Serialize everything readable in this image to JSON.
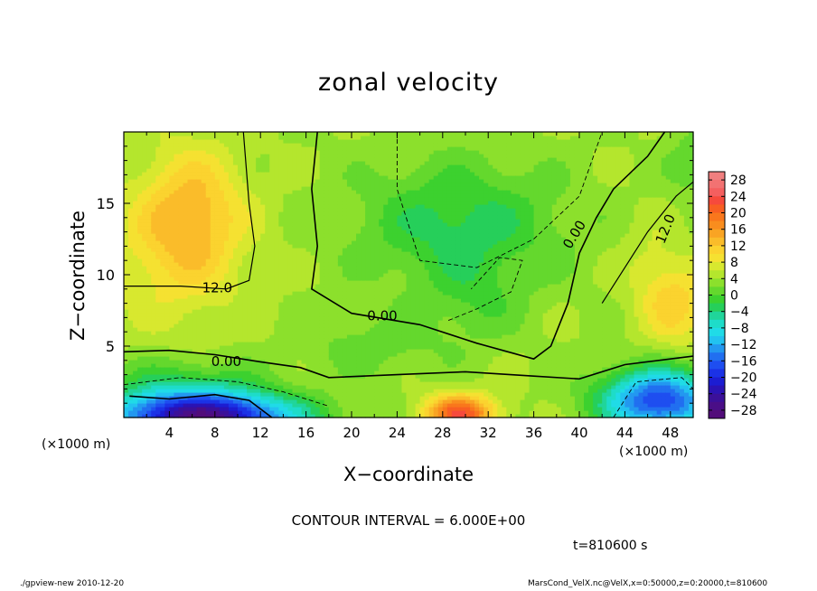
{
  "chart_data": {
    "type": "heatmap",
    "title": "zonal velocity",
    "xlabel": "X−coordinate",
    "ylabel": "Z−coordinate",
    "x_unit_label": "(×1000 m)",
    "y_unit_label": "(×1000 m)",
    "x_ticks": [
      4,
      8,
      12,
      16,
      20,
      24,
      28,
      32,
      36,
      40,
      44,
      48
    ],
    "y_ticks": [
      5,
      10,
      15
    ],
    "xlim": [
      0,
      50
    ],
    "ylim": [
      0,
      20
    ],
    "colorbar": {
      "labels": [
        "28",
        "24",
        "20",
        "16",
        "12",
        "8",
        "4",
        "0",
        "−4",
        "−8",
        "−12",
        "−16",
        "−20",
        "−24",
        "−28"
      ],
      "levels": [
        30,
        28,
        26,
        24,
        22,
        20,
        18,
        16,
        14,
        12,
        10,
        8,
        6,
        4,
        2,
        0,
        -2,
        -4,
        -6,
        -8,
        -10,
        -12,
        -14,
        -16,
        -18,
        -20,
        -22,
        -24,
        -26,
        -28,
        -30
      ],
      "colors": [
        "#f07f7f",
        "#f27272",
        "#f45f5f",
        "#f64a3c",
        "#f85f22",
        "#f9771c",
        "#f98d1e",
        "#f9a423",
        "#fabc2a",
        "#fbd32f",
        "#f5e131",
        "#d8e82f",
        "#b4e62d",
        "#8ce02c",
        "#64d82d",
        "#3cd12f",
        "#26cf5a",
        "#20d59a",
        "#1edcc9",
        "#20dbe7",
        "#22c2f0",
        "#2398f0",
        "#216ff0",
        "#1e4ef0",
        "#1b32e6",
        "#1c1dd2",
        "#2b13b4",
        "#3b1099",
        "#4a0e87",
        "#520d7a"
      ]
    },
    "contour_lines": [
      {
        "label": "12.0",
        "value": 12
      },
      {
        "label": "0.00",
        "value": 0
      }
    ],
    "contour_interval_text": "CONTOUR INTERVAL = 6.000E+00",
    "time_text": "t=810600 s",
    "field_description": "Zonal velocity: ~12–18 upper-left (max ~18 near x=6, z=14), ~12–16 upper-right lower corner near x=48, z=8, 0 to −8 interior (min ~−10 near x=30, z=13), −15 to −28 along bottom left (x=0–12, z<2) and right (x=44–50, z<2), ~14 near x=30, z=0.5"
  },
  "footer": {
    "left": "./gpview-new   2010-12-20",
    "right": "MarsCond_VelX.nc@VelX,x=0:50000,z=0:20000,t=810600"
  }
}
